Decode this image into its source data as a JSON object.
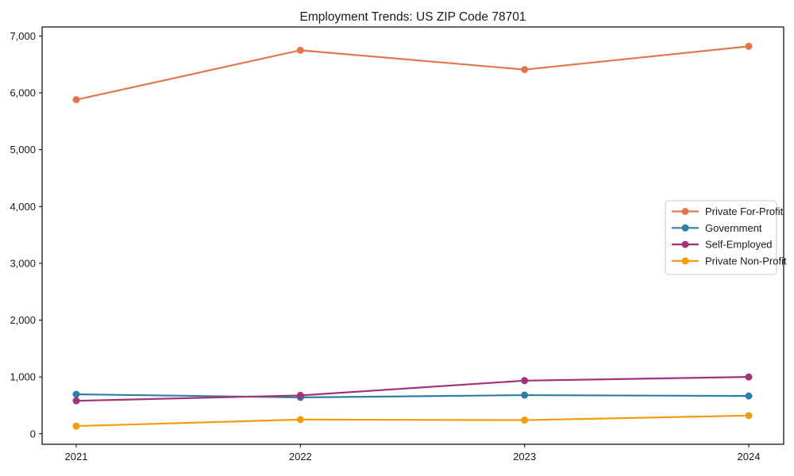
{
  "title": "Employment Trends: US ZIP Code 78701",
  "chart_data": {
    "type": "line",
    "title": "Employment Trends: US ZIP Code 78701",
    "xlabel": "",
    "ylabel": "",
    "x": [
      2021,
      2022,
      2023,
      2024
    ],
    "x_labels": [
      "2021",
      "2022",
      "2023",
      "2024"
    ],
    "series": [
      {
        "name": "Private For-Profit",
        "color": "#E2774D",
        "values": [
          5880,
          6750,
          6410,
          6820
        ]
      },
      {
        "name": "Government",
        "color": "#2E7FA7",
        "values": [
          695,
          640,
          680,
          665
        ]
      },
      {
        "name": "Self-Employed",
        "color": "#A13477",
        "values": [
          580,
          675,
          935,
          1000
        ]
      },
      {
        "name": "Private Non-Profit",
        "color": "#F29C0E",
        "values": [
          135,
          250,
          240,
          320
        ]
      }
    ],
    "ylim": [
      -185,
      7160
    ],
    "yticks": [
      0,
      1000,
      2000,
      3000,
      4000,
      5000,
      6000,
      7000
    ],
    "ytick_labels": [
      "0",
      "1,000",
      "2,000",
      "3,000",
      "4,000",
      "5,000",
      "6,000",
      "7,000"
    ],
    "grid": false,
    "legend_position": "center-right",
    "marker": "circle"
  }
}
